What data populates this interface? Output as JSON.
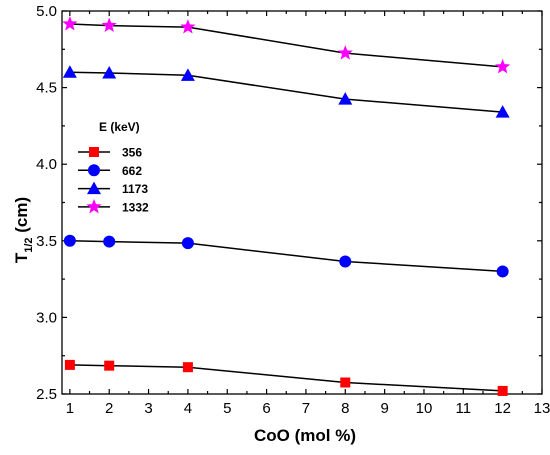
{
  "chart_data": {
    "type": "line",
    "title": "",
    "xlabel": "CoO (mol %)",
    "ylabel_main": "T",
    "ylabel_sub": "1/2",
    "ylabel_unit": " (cm)",
    "xlim": [
      0.8,
      13
    ],
    "ylim": [
      2.5,
      5.0
    ],
    "xticks": [
      1,
      2,
      3,
      4,
      5,
      6,
      7,
      8,
      9,
      10,
      11,
      12,
      13
    ],
    "yticks": [
      2.5,
      3.0,
      3.5,
      4.0,
      4.5,
      5.0
    ],
    "ytick_labels": [
      "2.5",
      "3.0",
      "3.5",
      "4.0",
      "4.5",
      "5.0"
    ],
    "x": [
      1,
      2,
      4,
      8,
      12
    ],
    "legend_title": "E (keV)",
    "legend_position": "left",
    "grid": false,
    "series": [
      {
        "name": "356",
        "marker": "square",
        "color": "#ff0000",
        "values": [
          2.69,
          2.685,
          2.675,
          2.575,
          2.52
        ]
      },
      {
        "name": "662",
        "marker": "circle",
        "color": "#0000ff",
        "values": [
          3.5,
          3.495,
          3.485,
          3.365,
          3.3
        ]
      },
      {
        "name": "1173",
        "marker": "triangle",
        "color": "#0000ff",
        "values": [
          4.6,
          4.595,
          4.58,
          4.425,
          4.34
        ]
      },
      {
        "name": "1332",
        "marker": "star",
        "color": "#ff00ff",
        "values": [
          4.915,
          4.905,
          4.895,
          4.725,
          4.635
        ]
      }
    ]
  }
}
